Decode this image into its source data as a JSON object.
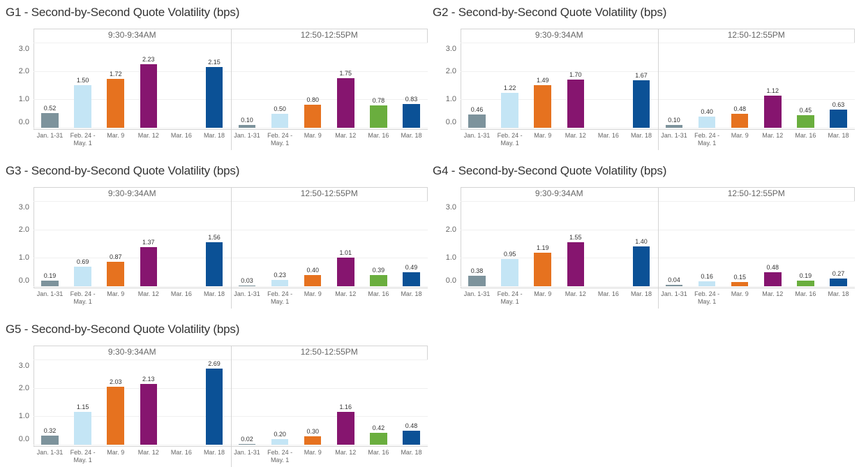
{
  "chart_data": [
    {
      "type": "bar",
      "title": "G1 - Second-by-Second Quote Volatility (bps)",
      "categories": [
        "Jan. 1-31",
        "Feb. 24 - May. 1",
        "Mar. 9",
        "Mar. 12",
        "Mar. 16",
        "Mar. 18"
      ],
      "colors": [
        "#7d939c",
        "#c4e5f5",
        "#e6721f",
        "#86156f",
        "#6aae3e",
        "#0b5196"
      ],
      "ylim": [
        0,
        3
      ],
      "yticks": [
        {
          "value": 0,
          "label": "0.0"
        },
        {
          "value": 1,
          "label": "1.0"
        },
        {
          "value": 2,
          "label": "2.0"
        },
        {
          "value": 3,
          "label": "3.0"
        }
      ],
      "grid": true,
      "panels": [
        {
          "name": "9:30-9:34AM",
          "values": [
            0.52,
            1.5,
            1.72,
            2.23,
            null,
            2.15
          ],
          "value_labels": [
            "0.52",
            "1.50",
            "1.72",
            "2.23",
            null,
            "2.15"
          ]
        },
        {
          "name": "12:50-12:55PM",
          "values": [
            0.1,
            0.5,
            0.8,
            1.75,
            0.78,
            0.83
          ],
          "value_labels": [
            "0.10",
            "0.50",
            "0.80",
            "1.75",
            "0.78",
            "0.83"
          ]
        }
      ]
    },
    {
      "type": "bar",
      "title": "G2 - Second-by-Second Quote Volatility (bps)",
      "categories": [
        "Jan. 1-31",
        "Feb. 24 - May. 1",
        "Mar. 9",
        "Mar. 12",
        "Mar. 16",
        "Mar. 18"
      ],
      "colors": [
        "#7d939c",
        "#c4e5f5",
        "#e6721f",
        "#86156f",
        "#6aae3e",
        "#0b5196"
      ],
      "ylim": [
        0,
        3
      ],
      "yticks": [
        {
          "value": 0,
          "label": "0.0"
        },
        {
          "value": 1,
          "label": "1.0"
        },
        {
          "value": 2,
          "label": "2.0"
        },
        {
          "value": 3,
          "label": "3.0"
        }
      ],
      "grid": true,
      "panels": [
        {
          "name": "9:30-9:34AM",
          "values": [
            0.46,
            1.22,
            1.49,
            1.7,
            null,
            1.67
          ],
          "value_labels": [
            "0.46",
            "1.22",
            "1.49",
            "1.70",
            null,
            "1.67"
          ]
        },
        {
          "name": "12:50-12:55PM",
          "values": [
            0.1,
            0.4,
            0.48,
            1.12,
            0.45,
            0.63
          ],
          "value_labels": [
            "0.10",
            "0.40",
            "0.48",
            "1.12",
            "0.45",
            "0.63"
          ]
        }
      ]
    },
    {
      "type": "bar",
      "title": "G3 - Second-by-Second Quote Volatility (bps)",
      "categories": [
        "Jan. 1-31",
        "Feb. 24 - May. 1",
        "Mar. 9",
        "Mar. 12",
        "Mar. 16",
        "Mar. 18"
      ],
      "colors": [
        "#7d939c",
        "#c4e5f5",
        "#e6721f",
        "#86156f",
        "#6aae3e",
        "#0b5196"
      ],
      "ylim": [
        0,
        3
      ],
      "yticks": [
        {
          "value": 0,
          "label": "0.0"
        },
        {
          "value": 1,
          "label": "1.0"
        },
        {
          "value": 2,
          "label": "2.0"
        },
        {
          "value": 3,
          "label": "3.0"
        }
      ],
      "grid": true,
      "panels": [
        {
          "name": "9:30-9:34AM",
          "values": [
            0.19,
            0.69,
            0.87,
            1.37,
            null,
            1.56
          ],
          "value_labels": [
            "0.19",
            "0.69",
            "0.87",
            "1.37",
            null,
            "1.56"
          ]
        },
        {
          "name": "12:50-12:55PM",
          "values": [
            0.03,
            0.23,
            0.4,
            1.01,
            0.39,
            0.49
          ],
          "value_labels": [
            "0.03",
            "0.23",
            "0.40",
            "1.01",
            "0.39",
            "0.49"
          ]
        }
      ]
    },
    {
      "type": "bar",
      "title": "G4 - Second-by-Second Quote Volatility (bps)",
      "categories": [
        "Jan. 1-31",
        "Feb. 24 - May. 1",
        "Mar. 9",
        "Mar. 12",
        "Mar. 16",
        "Mar. 18"
      ],
      "colors": [
        "#7d939c",
        "#c4e5f5",
        "#e6721f",
        "#86156f",
        "#6aae3e",
        "#0b5196"
      ],
      "ylim": [
        0,
        3
      ],
      "yticks": [
        {
          "value": 0,
          "label": "0.0"
        },
        {
          "value": 1,
          "label": "1.0"
        },
        {
          "value": 2,
          "label": "2.0"
        },
        {
          "value": 3,
          "label": "3.0"
        }
      ],
      "grid": true,
      "panels": [
        {
          "name": "9:30-9:34AM",
          "values": [
            0.38,
            0.95,
            1.19,
            1.55,
            null,
            1.4
          ],
          "value_labels": [
            "0.38",
            "0.95",
            "1.19",
            "1.55",
            null,
            "1.40"
          ]
        },
        {
          "name": "12:50-12:55PM",
          "values": [
            0.04,
            0.16,
            0.15,
            0.48,
            0.19,
            0.27
          ],
          "value_labels": [
            "0.04",
            "0.16",
            "0.15",
            "0.48",
            "0.19",
            "0.27"
          ]
        }
      ]
    },
    {
      "type": "bar",
      "title": "G5 - Second-by-Second Quote Volatility (bps)",
      "categories": [
        "Jan. 1-31",
        "Feb. 24 - May. 1",
        "Mar. 9",
        "Mar. 12",
        "Mar. 16",
        "Mar. 18"
      ],
      "colors": [
        "#7d939c",
        "#c4e5f5",
        "#e6721f",
        "#86156f",
        "#6aae3e",
        "#0b5196"
      ],
      "ylim": [
        0,
        3
      ],
      "yticks": [
        {
          "value": 0,
          "label": "0.0"
        },
        {
          "value": 1,
          "label": "1.0"
        },
        {
          "value": 2,
          "label": "2.0"
        },
        {
          "value": 3,
          "label": "3.0"
        }
      ],
      "grid": true,
      "panels": [
        {
          "name": "9:30-9:34AM",
          "values": [
            0.32,
            1.15,
            2.03,
            2.13,
            null,
            2.69
          ],
          "value_labels": [
            "0.32",
            "1.15",
            "2.03",
            "2.13",
            null,
            "2.69"
          ]
        },
        {
          "name": "12:50-12:55PM",
          "values": [
            0.02,
            0.2,
            0.3,
            1.16,
            0.42,
            0.48
          ],
          "value_labels": [
            "0.02",
            "0.20",
            "0.30",
            "1.16",
            "0.42",
            "0.48"
          ]
        }
      ]
    }
  ]
}
